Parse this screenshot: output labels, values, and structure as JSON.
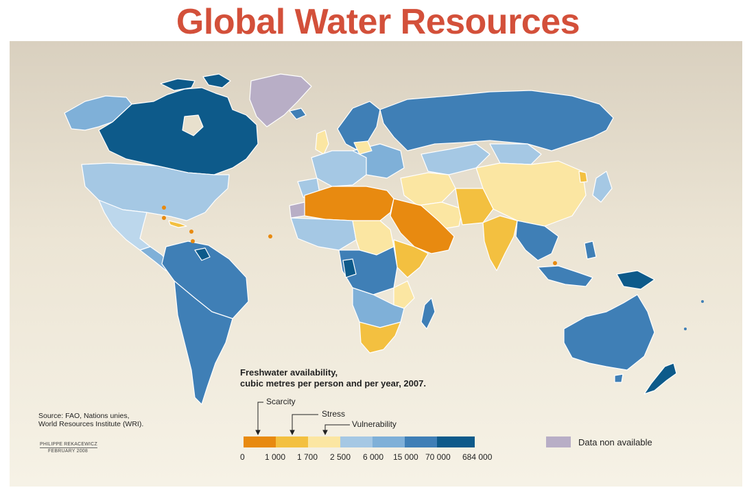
{
  "title": "Global Water Resources",
  "legend": {
    "title_line1": "Freshwater availability,",
    "title_line2": "cubic metres per person and per year, 2007.",
    "categories": [
      "Scarcity",
      "Stress",
      "Vulnerability"
    ],
    "ticks": [
      "0",
      "1 000",
      "1 700",
      "2 500",
      "6 000",
      "15 000",
      "70 000",
      "684 000"
    ],
    "bins": [
      {
        "from": 0,
        "to": 1000,
        "color": "#e88a10"
      },
      {
        "from": 1000,
        "to": 1700,
        "color": "#f3c040"
      },
      {
        "from": 1700,
        "to": 2500,
        "color": "#fbe6a2"
      },
      {
        "from": 2500,
        "to": 6000,
        "color": "#a5c8e4"
      },
      {
        "from": 6000,
        "to": 15000,
        "color": "#7fb0d8"
      },
      {
        "from": 15000,
        "to": 70000,
        "color": "#3f7fb6"
      },
      {
        "from": 70000,
        "to": 684000,
        "color": "#0d5a8a"
      }
    ],
    "no_data_label": "Data non available",
    "no_data_color": "#b8aec6"
  },
  "source": {
    "line1": "Source: FAO, Nations unies,",
    "line2": "World Resources Institute (WRI)."
  },
  "signature": {
    "author": "PHILIPPE REKACEWICZ",
    "date": "FEBRUARY 2008"
  }
}
